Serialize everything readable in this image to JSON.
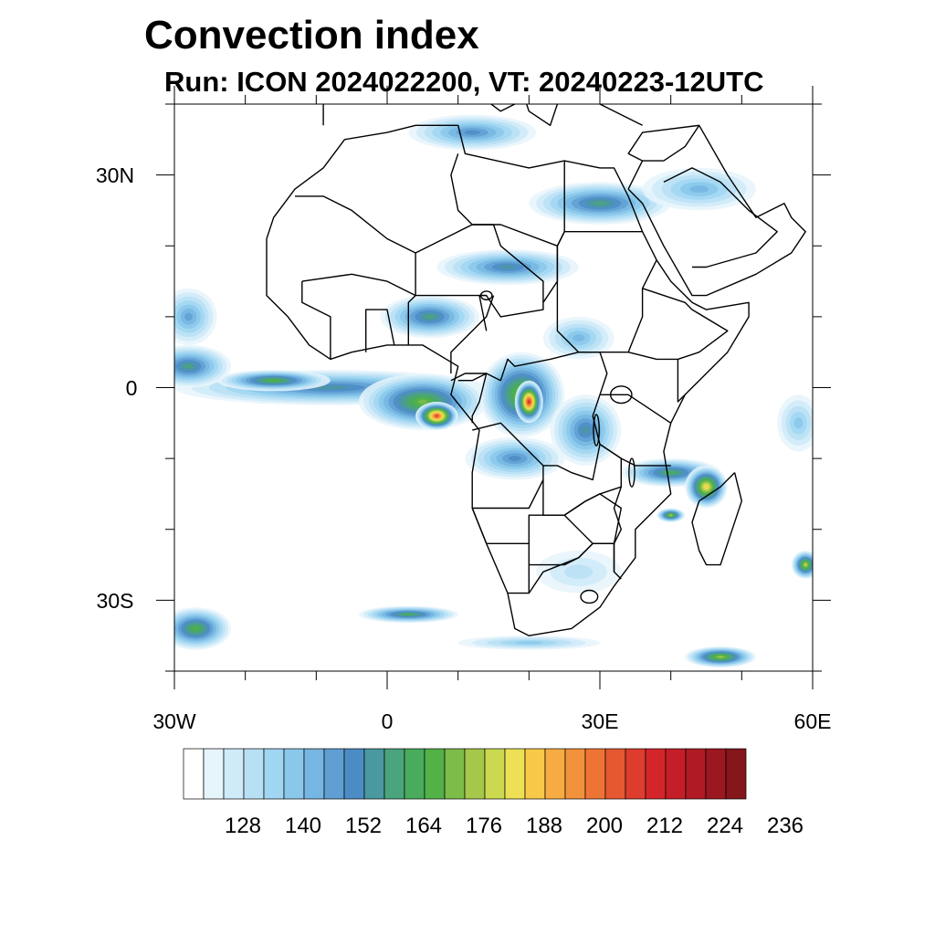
{
  "title": "Convection index",
  "subtitle": "Run: ICON 2024022200,  VT: 20240223-12UTC",
  "map": {
    "lat_labels": [
      "30N",
      "0",
      "30S"
    ],
    "lon_labels": [
      "30W",
      "0",
      "30E",
      "60E"
    ],
    "lon_range": [
      -30,
      60
    ],
    "lat_range": [
      -40,
      40
    ]
  },
  "colorbar": {
    "colors": [
      "#ffffff",
      "#e6f4fc",
      "#cfeaf8",
      "#b8e0f5",
      "#a0d6f2",
      "#8ac8ea",
      "#76b6e2",
      "#5f9fd3",
      "#4c8cc4",
      "#4a98a0",
      "#4aa47c",
      "#48ac5c",
      "#52b248",
      "#7cbc48",
      "#a6c84a",
      "#ccd850",
      "#eee055",
      "#f8c848",
      "#f6ac42",
      "#f2923c",
      "#ee7436",
      "#e65830",
      "#de3c2c",
      "#d4262a",
      "#c41e28",
      "#b01a24",
      "#9c1820",
      "#84161c"
    ],
    "tick_labels": [
      "128",
      "140",
      "152",
      "164",
      "176",
      "188",
      "200",
      "212",
      "224",
      "236"
    ]
  },
  "fields": [
    {
      "name": "atlantic-itcz",
      "lon": -8,
      "lat": 0,
      "rx": 22,
      "ry": 2.5,
      "level": 9
    },
    {
      "name": "atlantic-itcz-core",
      "lon": -16,
      "lat": 1,
      "rx": 8,
      "ry": 1.5,
      "level": 12
    },
    {
      "name": "west-atlantic-band",
      "lon": -28,
      "lat": 3,
      "rx": 6,
      "ry": 3,
      "level": 10
    },
    {
      "name": "gulf-of-guinea",
      "lon": 5,
      "lat": -2,
      "rx": 9,
      "ry": 4,
      "level": 13
    },
    {
      "name": "gulf-of-guinea-core",
      "lon": 7,
      "lat": -4,
      "rx": 3,
      "ry": 2,
      "level": 22
    },
    {
      "name": "congo-basin",
      "lon": 19,
      "lat": -1,
      "rx": 6,
      "ry": 6,
      "level": 14
    },
    {
      "name": "congo-basin-core",
      "lon": 20,
      "lat": -2,
      "rx": 2,
      "ry": 3,
      "level": 23
    },
    {
      "name": "west-africa-band",
      "lon": 6,
      "lat": 10,
      "rx": 7,
      "ry": 3,
      "level": 10
    },
    {
      "name": "sahara-band-west",
      "lon": 17,
      "lat": 17,
      "rx": 10,
      "ry": 2.5,
      "level": 9
    },
    {
      "name": "sahara-band-east",
      "lon": 30,
      "lat": 26,
      "rx": 10,
      "ry": 3,
      "level": 10
    },
    {
      "name": "arabia-band",
      "lon": 44,
      "lat": 28,
      "rx": 8,
      "ry": 3,
      "level": 6
    },
    {
      "name": "mediterranean-band",
      "lon": 12,
      "lat": 36,
      "rx": 9,
      "ry": 2.5,
      "level": 8
    },
    {
      "name": "mozambique-channel",
      "lon": 40,
      "lat": -12,
      "rx": 7,
      "ry": 2,
      "level": 11
    },
    {
      "name": "madagascar-north",
      "lon": 45,
      "lat": -14,
      "rx": 3,
      "ry": 3,
      "level": 17
    },
    {
      "name": "madagascar-west",
      "lon": 40,
      "lat": -18,
      "rx": 2,
      "ry": 1,
      "level": 14
    },
    {
      "name": "east-africa-lakes",
      "lon": 28,
      "lat": -6,
      "rx": 5,
      "ry": 5,
      "level": 9
    },
    {
      "name": "angola-zambia",
      "lon": 18,
      "lat": -10,
      "rx": 7,
      "ry": 3,
      "level": 8
    },
    {
      "name": "indian-ocean-east",
      "lon": 58,
      "lat": -5,
      "rx": 3,
      "ry": 4,
      "level": 5
    },
    {
      "name": "indian-ocean-southeast",
      "lon": 59,
      "lat": -25,
      "rx": 2,
      "ry": 2,
      "level": 15
    },
    {
      "name": "south-atlantic-band",
      "lon": 3,
      "lat": -32,
      "rx": 7,
      "ry": 1.2,
      "level": 11
    },
    {
      "name": "south-atlantic-west",
      "lon": -27,
      "lat": -34,
      "rx": 5,
      "ry": 3,
      "level": 12
    },
    {
      "name": "southern-ocean-band",
      "lon": 20,
      "lat": -36,
      "rx": 10,
      "ry": 1,
      "level": 5
    },
    {
      "name": "madagascar-south-band",
      "lon": 47,
      "lat": -38,
      "rx": 5,
      "ry": 1.5,
      "level": 14
    },
    {
      "name": "southern-africa-plateau",
      "lon": 27,
      "lat": -26,
      "rx": 6,
      "ry": 3,
      "level": 3
    },
    {
      "name": "sahel-east",
      "lon": 27,
      "lat": 7,
      "rx": 5,
      "ry": 3,
      "level": 6
    },
    {
      "name": "west-atlantic-north",
      "lon": -28,
      "lat": 10,
      "rx": 4,
      "ry": 4,
      "level": 7
    }
  ],
  "lines": [
    {
      "name": "africa-coastline",
      "points": [
        [
          -17,
          21
        ],
        [
          -16,
          24
        ],
        [
          -13,
          28
        ],
        [
          -9,
          31
        ],
        [
          -6,
          35
        ],
        [
          0,
          36
        ],
        [
          4,
          37
        ],
        [
          10,
          37
        ],
        [
          11,
          33
        ],
        [
          20,
          31
        ],
        [
          25,
          32
        ],
        [
          30,
          31
        ],
        [
          32,
          31
        ],
        [
          34,
          27
        ],
        [
          36,
          22
        ],
        [
          38,
          18
        ],
        [
          40,
          15
        ],
        [
          43,
          12
        ],
        [
          45,
          11
        ],
        [
          51,
          12
        ],
        [
          51,
          10
        ],
        [
          48,
          5
        ],
        [
          42,
          -1
        ],
        [
          40,
          -5
        ],
        [
          39,
          -9
        ],
        [
          40,
          -15
        ],
        [
          35,
          -20
        ],
        [
          35,
          -24
        ],
        [
          32,
          -28
        ],
        [
          30,
          -31
        ],
        [
          26,
          -34
        ],
        [
          20,
          -35
        ],
        [
          18,
          -34
        ],
        [
          17,
          -29
        ],
        [
          14,
          -22
        ],
        [
          12,
          -17
        ],
        [
          12,
          -12
        ],
        [
          13,
          -6
        ],
        [
          9,
          -1
        ],
        [
          10,
          3
        ],
        [
          5,
          6
        ],
        [
          0,
          6
        ],
        [
          -5,
          5
        ],
        [
          -8,
          4
        ],
        [
          -11,
          6
        ],
        [
          -14,
          10
        ],
        [
          -17,
          13
        ],
        [
          -17,
          16
        ],
        [
          -17,
          21
        ]
      ]
    },
    {
      "name": "arabia-coastline",
      "points": [
        [
          34,
          28
        ],
        [
          36,
          32
        ],
        [
          34,
          33
        ],
        [
          36,
          36
        ],
        [
          44,
          37
        ],
        [
          48,
          30
        ],
        [
          50,
          27
        ],
        [
          52,
          24
        ],
        [
          56,
          26
        ],
        [
          57,
          24
        ],
        [
          59,
          22
        ],
        [
          57,
          19
        ],
        [
          52,
          16
        ],
        [
          45,
          13
        ],
        [
          43,
          13
        ],
        [
          39,
          20
        ],
        [
          36,
          26
        ],
        [
          34,
          28
        ]
      ]
    },
    {
      "name": "madagascar-coastline",
      "points": [
        [
          49,
          -12
        ],
        [
          50,
          -16
        ],
        [
          48,
          -22
        ],
        [
          47,
          -25
        ],
        [
          45,
          -25
        ],
        [
          44,
          -23
        ],
        [
          43,
          -19
        ],
        [
          44,
          -16
        ],
        [
          47,
          -14
        ],
        [
          49,
          -12
        ]
      ]
    },
    {
      "name": "europe-coastline",
      "points": [
        [
          -9,
          37
        ],
        [
          -9,
          43
        ],
        [
          -2,
          43
        ],
        [
          3,
          43
        ],
        [
          8,
          44
        ],
        [
          12,
          42
        ],
        [
          16,
          39
        ],
        [
          18,
          40
        ],
        [
          14,
          42
        ],
        [
          12,
          45
        ],
        [
          14,
          45
        ],
        [
          19,
          42
        ],
        [
          20,
          39
        ],
        [
          23,
          37
        ],
        [
          24,
          40
        ],
        [
          26,
          41
        ],
        [
          30,
          40
        ],
        [
          36,
          37
        ]
      ]
    },
    {
      "name": "border-sahara",
      "points": [
        [
          -13,
          27
        ],
        [
          -9,
          27
        ],
        [
          -5,
          25
        ],
        [
          0,
          21
        ],
        [
          4,
          19
        ],
        [
          12,
          23
        ],
        [
          16,
          23
        ],
        [
          24,
          20
        ],
        [
          25,
          22
        ],
        [
          36,
          22
        ]
      ]
    },
    {
      "name": "border-libya-egypt",
      "points": [
        [
          25,
          32
        ],
        [
          25,
          22
        ],
        [
          24,
          20
        ],
        [
          24,
          15
        ],
        [
          22,
          12
        ]
      ]
    },
    {
      "name": "border-algeria-libya",
      "points": [
        [
          10,
          33
        ],
        [
          9,
          30
        ],
        [
          10,
          25
        ],
        [
          12,
          23
        ]
      ]
    },
    {
      "name": "border-mali-niger",
      "points": [
        [
          -12,
          15
        ],
        [
          -5,
          16
        ],
        [
          0,
          15
        ],
        [
          4,
          13
        ],
        [
          4,
          18
        ],
        [
          4,
          19
        ]
      ]
    },
    {
      "name": "border-chad",
      "points": [
        [
          12,
          23
        ],
        [
          15,
          23
        ],
        [
          16,
          20
        ],
        [
          22,
          15
        ],
        [
          22,
          11
        ],
        [
          16,
          10
        ],
        [
          14,
          13
        ],
        [
          13,
          13
        ],
        [
          14,
          8
        ]
      ]
    },
    {
      "name": "border-sudan",
      "points": [
        [
          24,
          20
        ],
        [
          24,
          8
        ],
        [
          27,
          5
        ],
        [
          34,
          5
        ],
        [
          36,
          10
        ],
        [
          36,
          14
        ],
        [
          38,
          18
        ]
      ]
    },
    {
      "name": "border-ethiopia",
      "points": [
        [
          34,
          5
        ],
        [
          38,
          4
        ],
        [
          41,
          4
        ],
        [
          44,
          5
        ],
        [
          48,
          8
        ],
        [
          43,
          11
        ],
        [
          42,
          12
        ],
        [
          36,
          14
        ]
      ]
    },
    {
      "name": "border-horn",
      "points": [
        [
          41,
          4
        ],
        [
          41,
          -2
        ],
        [
          42,
          -1
        ]
      ]
    },
    {
      "name": "border-east-africa",
      "points": [
        [
          30,
          -1
        ],
        [
          34,
          -1
        ],
        [
          40,
          -5
        ]
      ]
    },
    {
      "name": "border-drc-west",
      "points": [
        [
          12,
          -6
        ],
        [
          16,
          -5
        ],
        [
          19,
          -8
        ],
        [
          22,
          -11
        ],
        [
          24,
          -11
        ],
        [
          26,
          -12
        ],
        [
          29,
          -13
        ],
        [
          30,
          -8
        ],
        [
          29,
          -4
        ],
        [
          30,
          -1
        ],
        [
          31,
          2
        ],
        [
          30,
          5
        ],
        [
          27,
          5
        ],
        [
          23,
          4
        ],
        [
          18,
          3
        ],
        [
          17,
          4
        ],
        [
          16,
          1
        ],
        [
          14,
          2
        ],
        [
          12,
          1
        ],
        [
          10,
          1
        ]
      ]
    },
    {
      "name": "border-gabon-congo",
      "points": [
        [
          9,
          1
        ],
        [
          11,
          2
        ],
        [
          14,
          2
        ],
        [
          13,
          -2
        ],
        [
          12,
          -4
        ],
        [
          12,
          -5
        ]
      ]
    },
    {
      "name": "border-cameroon",
      "points": [
        [
          9,
          2
        ],
        [
          9,
          5
        ],
        [
          11,
          7
        ],
        [
          14,
          10
        ],
        [
          15,
          13
        ]
      ]
    },
    {
      "name": "border-nigeria",
      "points": [
        [
          3,
          6
        ],
        [
          3,
          12
        ],
        [
          4,
          13
        ],
        [
          9,
          13
        ],
        [
          14,
          13
        ]
      ]
    },
    {
      "name": "border-west-africa-1",
      "points": [
        [
          -3,
          5
        ],
        [
          -3,
          11
        ],
        [
          0,
          11
        ],
        [
          1,
          6
        ]
      ]
    },
    {
      "name": "border-west-africa-2",
      "points": [
        [
          -8,
          4
        ],
        [
          -8,
          10
        ],
        [
          -12,
          12
        ],
        [
          -12,
          15
        ]
      ]
    },
    {
      "name": "border-angola",
      "points": [
        [
          12,
          -17
        ],
        [
          20,
          -17
        ],
        [
          22,
          -13
        ],
        [
          22,
          -11
        ]
      ]
    },
    {
      "name": "border-zambia",
      "points": [
        [
          22,
          -13
        ],
        [
          22,
          -18
        ],
        [
          25,
          -18
        ],
        [
          28,
          -16
        ],
        [
          30,
          -15
        ],
        [
          33,
          -14
        ],
        [
          33,
          -10
        ],
        [
          30,
          -8
        ]
      ]
    },
    {
      "name": "border-mozambique",
      "points": [
        [
          33,
          -14
        ],
        [
          32,
          -17
        ],
        [
          33,
          -20
        ],
        [
          32,
          -22
        ],
        [
          32,
          -26
        ],
        [
          33,
          -27
        ]
      ]
    },
    {
      "name": "border-tanzania",
      "points": [
        [
          30,
          -8
        ],
        [
          33,
          -10
        ],
        [
          35,
          -11
        ],
        [
          40,
          -11
        ]
      ]
    },
    {
      "name": "border-namibia",
      "points": [
        [
          12,
          -17
        ],
        [
          14,
          -22
        ],
        [
          20,
          -22
        ],
        [
          20,
          -25
        ],
        [
          20,
          -29
        ],
        [
          17,
          -29
        ]
      ]
    },
    {
      "name": "border-botswana",
      "points": [
        [
          20,
          -22
        ],
        [
          20,
          -18
        ],
        [
          25,
          -18
        ],
        [
          29,
          -22
        ],
        [
          27,
          -24
        ],
        [
          25,
          -25
        ],
        [
          20,
          -25
        ]
      ]
    },
    {
      "name": "border-south-africa",
      "points": [
        [
          20,
          -29
        ],
        [
          22,
          -26
        ],
        [
          27,
          -24
        ],
        [
          29,
          -22
        ],
        [
          32,
          -22
        ],
        [
          32,
          -26
        ]
      ]
    },
    {
      "name": "border-zimbabwe",
      "points": [
        [
          25,
          -18
        ],
        [
          28,
          -16
        ],
        [
          30,
          -15
        ],
        [
          33,
          -17
        ],
        [
          32,
          -22
        ],
        [
          29,
          -22
        ]
      ]
    },
    {
      "name": "border-arabia",
      "points": [
        [
          39,
          29
        ],
        [
          43,
          31
        ],
        [
          47,
          29
        ],
        [
          51,
          25
        ],
        [
          55,
          22
        ],
        [
          52,
          19
        ],
        [
          45,
          17
        ],
        [
          43,
          17
        ]
      ]
    },
    {
      "name": "border-middle-east",
      "points": [
        [
          36,
          32
        ],
        [
          39,
          32
        ],
        [
          42,
          34
        ],
        [
          44,
          37
        ]
      ]
    }
  ],
  "lakes": [
    {
      "name": "lake-victoria",
      "lon": 33,
      "lat": -1,
      "rx": 1.5,
      "ry": 1.2
    },
    {
      "name": "lake-chad",
      "lon": 14,
      "lat": 13,
      "rx": 0.8,
      "ry": 0.6
    },
    {
      "name": "lake-malawi",
      "lon": 34.5,
      "lat": -12,
      "rx": 0.4,
      "ry": 2
    },
    {
      "name": "lake-tanganyika",
      "lon": 29.5,
      "lat": -6,
      "rx": 0.4,
      "ry": 2.2
    },
    {
      "name": "lesotho",
      "lon": 28.5,
      "lat": -29.5,
      "rx": 1.2,
      "ry": 0.9
    }
  ]
}
